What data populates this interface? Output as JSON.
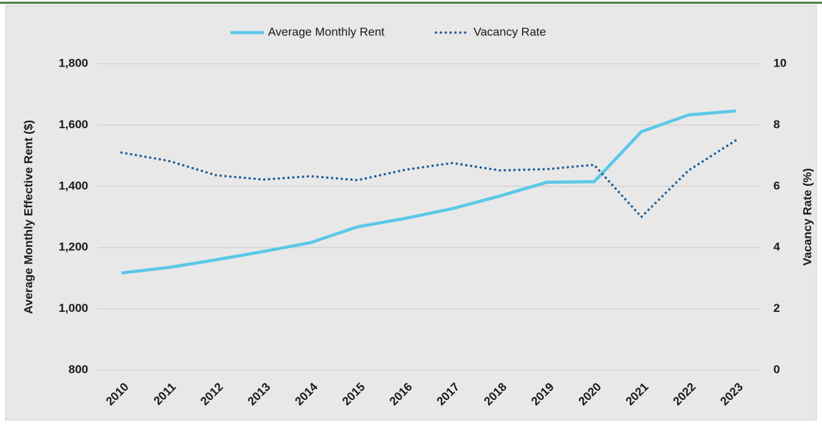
{
  "chart_data": {
    "type": "line",
    "categories": [
      "2010",
      "2011",
      "2012",
      "2013",
      "2014",
      "2015",
      "2016",
      "2017",
      "2018",
      "2019",
      "2020",
      "2021",
      "2022",
      "2023"
    ],
    "series": [
      {
        "name": "Average Monthly Rent",
        "color": "#5bc8e8",
        "style": "solid",
        "values": [
          1117,
          1135,
          1160,
          1187,
          1216,
          1268,
          1295,
          1327,
          1368,
          1413,
          1415,
          1578,
          1633,
          1646
        ]
      },
      {
        "name": "Vacancy Rate",
        "color": "#1f5f99",
        "style": "dotted",
        "axis": "y2",
        "values": [
          7.1,
          6.83,
          6.36,
          6.22,
          6.33,
          6.2,
          6.54,
          6.76,
          6.52,
          6.56,
          6.7,
          5.0,
          6.52,
          7.5
        ]
      }
    ],
    "ylabel": "Average Monthly Effective Rent ($)",
    "y2label": "Vacancy Rate (%)",
    "ylim": [
      800,
      1800
    ],
    "yticks": [
      {
        "value": 800,
        "label": "800"
      },
      {
        "value": 1000,
        "label": "1,000"
      },
      {
        "value": 1200,
        "label": "1,200"
      },
      {
        "value": 1400,
        "label": "1,400"
      },
      {
        "value": 1600,
        "label": "1,600"
      },
      {
        "value": 1800,
        "label": "1,800"
      }
    ],
    "y2lim": [
      0,
      10
    ],
    "y2ticks": [
      0,
      2,
      4,
      6,
      8,
      10
    ],
    "grid": true,
    "legend": "top"
  }
}
